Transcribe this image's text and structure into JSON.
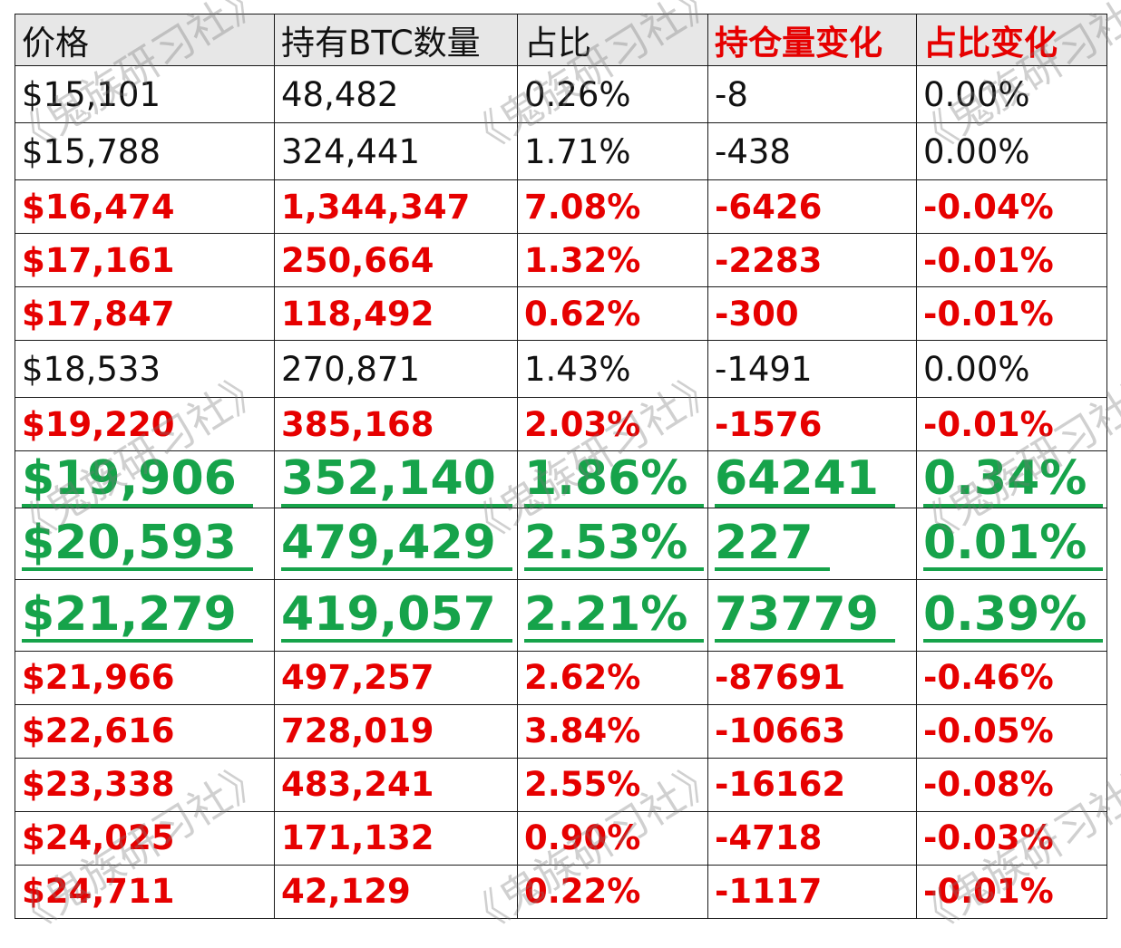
{
  "headers": [
    "价格",
    "持有BTC数量",
    "占比",
    "持仓量变化",
    "占比变化"
  ],
  "rows": [
    {
      "style": "normal",
      "cells": [
        "$15,101",
        "48,482",
        "0.26%",
        "-8",
        "0.00%"
      ]
    },
    {
      "style": "normal",
      "cells": [
        "$15,788",
        "324,441",
        "1.71%",
        "-438",
        "0.00%"
      ]
    },
    {
      "style": "red",
      "cells": [
        "$16,474",
        "1,344,347",
        "7.08%",
        "-6426",
        "-0.04%"
      ]
    },
    {
      "style": "red",
      "cells": [
        "$17,161",
        "250,664",
        "1.32%",
        "-2283",
        "-0.01%"
      ]
    },
    {
      "style": "red",
      "cells": [
        "$17,847",
        "118,492",
        "0.62%",
        "-300",
        "-0.01%"
      ]
    },
    {
      "style": "normal",
      "cells": [
        "$18,533",
        "270,871",
        "1.43%",
        "-1491",
        "0.00%"
      ]
    },
    {
      "style": "red",
      "cells": [
        "$19,220",
        "385,168",
        "2.03%",
        "-1576",
        "-0.01%"
      ]
    },
    {
      "style": "green",
      "cells": [
        "$19,906",
        "352,140",
        "1.86%",
        "64241",
        "0.34%"
      ]
    },
    {
      "style": "green",
      "cells": [
        "$20,593",
        "479,429",
        "2.53%",
        "227",
        "0.01%"
      ]
    },
    {
      "style": "green",
      "cells": [
        "$21,279",
        "419,057",
        "2.21%",
        "73779",
        "0.39%"
      ]
    },
    {
      "style": "red",
      "cells": [
        "$21,966",
        "497,257",
        "2.62%",
        "-87691",
        "-0.46%"
      ]
    },
    {
      "style": "red",
      "cells": [
        "$22,616",
        "728,019",
        "3.84%",
        "-10663",
        "-0.05%"
      ]
    },
    {
      "style": "red",
      "cells": [
        "$23,338",
        "483,241",
        "2.55%",
        "-16162",
        "-0.08%"
      ]
    },
    {
      "style": "red",
      "cells": [
        "$24,025",
        "171,132",
        "0.90%",
        "-4718",
        "-0.03%"
      ]
    },
    {
      "style": "red",
      "cells": [
        "$24,711",
        "42,129",
        "0.22%",
        "-1117",
        "-0.01%"
      ]
    }
  ],
  "colors": {
    "red": "#e60000",
    "green": "#16a34a",
    "header_bg": "#e7e7e7"
  },
  "watermark": "《鬼族研习社》"
}
